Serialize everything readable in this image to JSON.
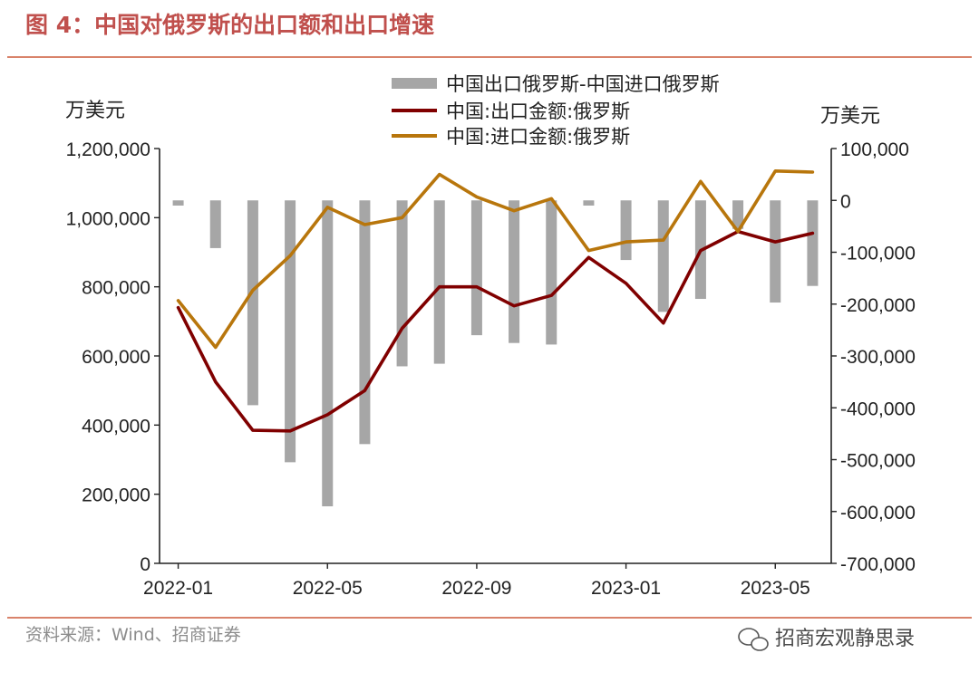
{
  "figure_title": "图 4：中国对俄罗斯的出口额和出口增速",
  "source": "资料来源：Wind、招商证券",
  "watermark": "招商宏观静思录",
  "colors": {
    "title": "#c0504d",
    "rule": "#d9836b",
    "bar": "#a6a6a6",
    "export": "#800000",
    "import": "#b8760c"
  },
  "chart_data": {
    "type": "bar",
    "x": [
      "2022-01",
      "2022-02",
      "2022-03",
      "2022-04",
      "2022-05",
      "2022-06",
      "2022-07",
      "2022-08",
      "2022-09",
      "2022-10",
      "2022-11",
      "2022-12",
      "2023-01",
      "2023-02",
      "2023-03",
      "2023-04",
      "2023-05",
      "2023-06"
    ],
    "x_tick_labels": [
      "2022-01",
      "2022-05",
      "2022-09",
      "2023-01",
      "2023-05"
    ],
    "left_axis": {
      "unit": "万美元",
      "ylim": [
        0,
        1200000
      ],
      "ticks": [
        "1,200,000",
        "1,000,000",
        "800,000",
        "600,000",
        "400,000",
        "200,000",
        "0"
      ]
    },
    "right_axis": {
      "unit": "万美元",
      "ylim": [
        -700000,
        100000
      ],
      "ticks": [
        "100,000",
        "0",
        "-100,000",
        "-200,000",
        "-300,000",
        "-400,000",
        "-500,000",
        "-600,000",
        "-700,000"
      ]
    },
    "series": [
      {
        "name": "中国出口俄罗斯-中国进口俄罗斯",
        "type": "bar",
        "axis": "right",
        "values": [
          -10000,
          -92000,
          -395000,
          -505000,
          -590000,
          -470000,
          -320000,
          -315000,
          -260000,
          -275000,
          -278000,
          -10000,
          -115000,
          -215000,
          -190000,
          -55000,
          -197000,
          -165000
        ]
      },
      {
        "name": "中国:出口金额:俄罗斯",
        "type": "line",
        "axis": "left",
        "values": [
          740000,
          525000,
          385000,
          383000,
          430000,
          500000,
          680000,
          800000,
          800000,
          745000,
          775000,
          885000,
          810000,
          695000,
          905000,
          960000,
          930000,
          955000
        ]
      },
      {
        "name": "中国:进口金额:俄罗斯",
        "type": "line",
        "axis": "left",
        "values": [
          760000,
          625000,
          790000,
          890000,
          1030000,
          980000,
          1000000,
          1125000,
          1060000,
          1020000,
          1055000,
          905000,
          930000,
          935000,
          1105000,
          960000,
          1135000,
          1132000
        ]
      }
    ]
  }
}
